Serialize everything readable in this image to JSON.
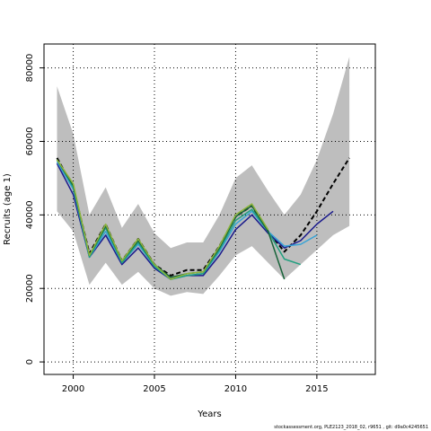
{
  "chart_data": {
    "type": "line",
    "xlabel": "Years",
    "ylabel": "Recruits (age 1)",
    "xlim": [
      1998.2,
      2018.6
    ],
    "ylim": [
      -3400,
      86500
    ],
    "x_ticks": [
      2000,
      2005,
      2010,
      2015
    ],
    "x_tick_labels": [
      "2000",
      "2005",
      "2010",
      "2015"
    ],
    "y_ticks": [
      0,
      20000,
      40000,
      60000,
      80000
    ],
    "y_tick_labels": [
      "0",
      "20000",
      "40000",
      "60000",
      "80000"
    ],
    "grid": true,
    "confidence_band": {
      "color": "#bebebe",
      "x": [
        1999,
        2000,
        2001,
        2002,
        2003,
        2004,
        2005,
        2006,
        2007,
        2008,
        2009,
        2010,
        2011,
        2012,
        2013,
        2014,
        2015,
        2016,
        2017
      ],
      "upper": [
        75000,
        62000,
        40000,
        47500,
        36500,
        43000,
        35000,
        31000,
        32500,
        32500,
        40000,
        50000,
        53500,
        46500,
        40000,
        45500,
        55000,
        67500,
        83000
      ],
      "lower": [
        41000,
        35500,
        21000,
        27000,
        21000,
        24500,
        20000,
        18000,
        19000,
        18500,
        23500,
        29000,
        31500,
        27000,
        22500,
        26500,
        30500,
        34500,
        37000
      ]
    },
    "series": [
      {
        "color": "#000000",
        "dashed": true,
        "width": 2,
        "x": [
          1999,
          2000,
          2001,
          2002,
          2003,
          2004,
          2005,
          2006,
          2007,
          2008,
          2009,
          2010,
          2011,
          2012,
          2013,
          2014,
          2015,
          2016,
          2017
        ],
        "values": [
          55500,
          47500,
          29500,
          37500,
          27500,
          33500,
          26500,
          23500,
          25000,
          25000,
          31500,
          39500,
          42500,
          35500,
          30000,
          34500,
          41000,
          48500,
          55500
        ]
      },
      {
        "color": "#1a1a8c",
        "dashed": false,
        "width": 1.5,
        "x": [
          1999,
          2000,
          2001,
          2002,
          2003,
          2004,
          2005,
          2006,
          2007,
          2008,
          2009,
          2010,
          2011,
          2012,
          2013,
          2014,
          2015,
          2016
        ],
        "values": [
          54000,
          45500,
          28500,
          34500,
          26500,
          31000,
          25500,
          22500,
          23500,
          23500,
          29000,
          36000,
          40000,
          35000,
          31000,
          33000,
          37500,
          41000
        ]
      },
      {
        "color": "#38a3d6",
        "dashed": false,
        "width": 1.5,
        "x": [
          1999,
          2000,
          2001,
          2002,
          2003,
          2004,
          2005,
          2006,
          2007,
          2008,
          2009,
          2010,
          2011,
          2012,
          2013,
          2014,
          2015
        ],
        "values": [
          54500,
          47000,
          28500,
          35500,
          27000,
          32000,
          26000,
          22500,
          23500,
          24000,
          30000,
          37500,
          41000,
          35500,
          31500,
          32000,
          34500
        ]
      },
      {
        "color": "#22a080",
        "dashed": false,
        "width": 1.5,
        "x": [
          1999,
          2000,
          2001,
          2002,
          2003,
          2004,
          2005,
          2006,
          2007,
          2008,
          2009,
          2010,
          2011,
          2012,
          2013,
          2014
        ],
        "values": [
          55000,
          47500,
          28500,
          36500,
          27000,
          32500,
          26000,
          22500,
          23500,
          24000,
          30500,
          38500,
          41500,
          35500,
          28000,
          26500
        ]
      },
      {
        "color": "#18643a",
        "dashed": false,
        "width": 1.5,
        "x": [
          1999,
          2000,
          2001,
          2002,
          2003,
          2004,
          2005,
          2006,
          2007,
          2008,
          2009,
          2010,
          2011,
          2012,
          2013
        ],
        "values": [
          55000,
          48000,
          29000,
          37000,
          27500,
          33000,
          26500,
          23000,
          24000,
          24500,
          31000,
          39500,
          42500,
          35500,
          22500
        ]
      },
      {
        "color": "#8db53c",
        "dashed": false,
        "width": 1.5,
        "x": [
          1999,
          2000,
          2001,
          2002,
          2003,
          2004,
          2005,
          2006,
          2007,
          2008,
          2009,
          2010,
          2011,
          2012
        ],
        "values": [
          55000,
          48500,
          29000,
          37500,
          27500,
          33500,
          26500,
          22500,
          24000,
          24500,
          31500,
          40000,
          43000,
          36000
        ]
      }
    ]
  },
  "footer": "stockassessment.org, PLE2123_2018_02, r9651 , git: d9a0c4245651"
}
